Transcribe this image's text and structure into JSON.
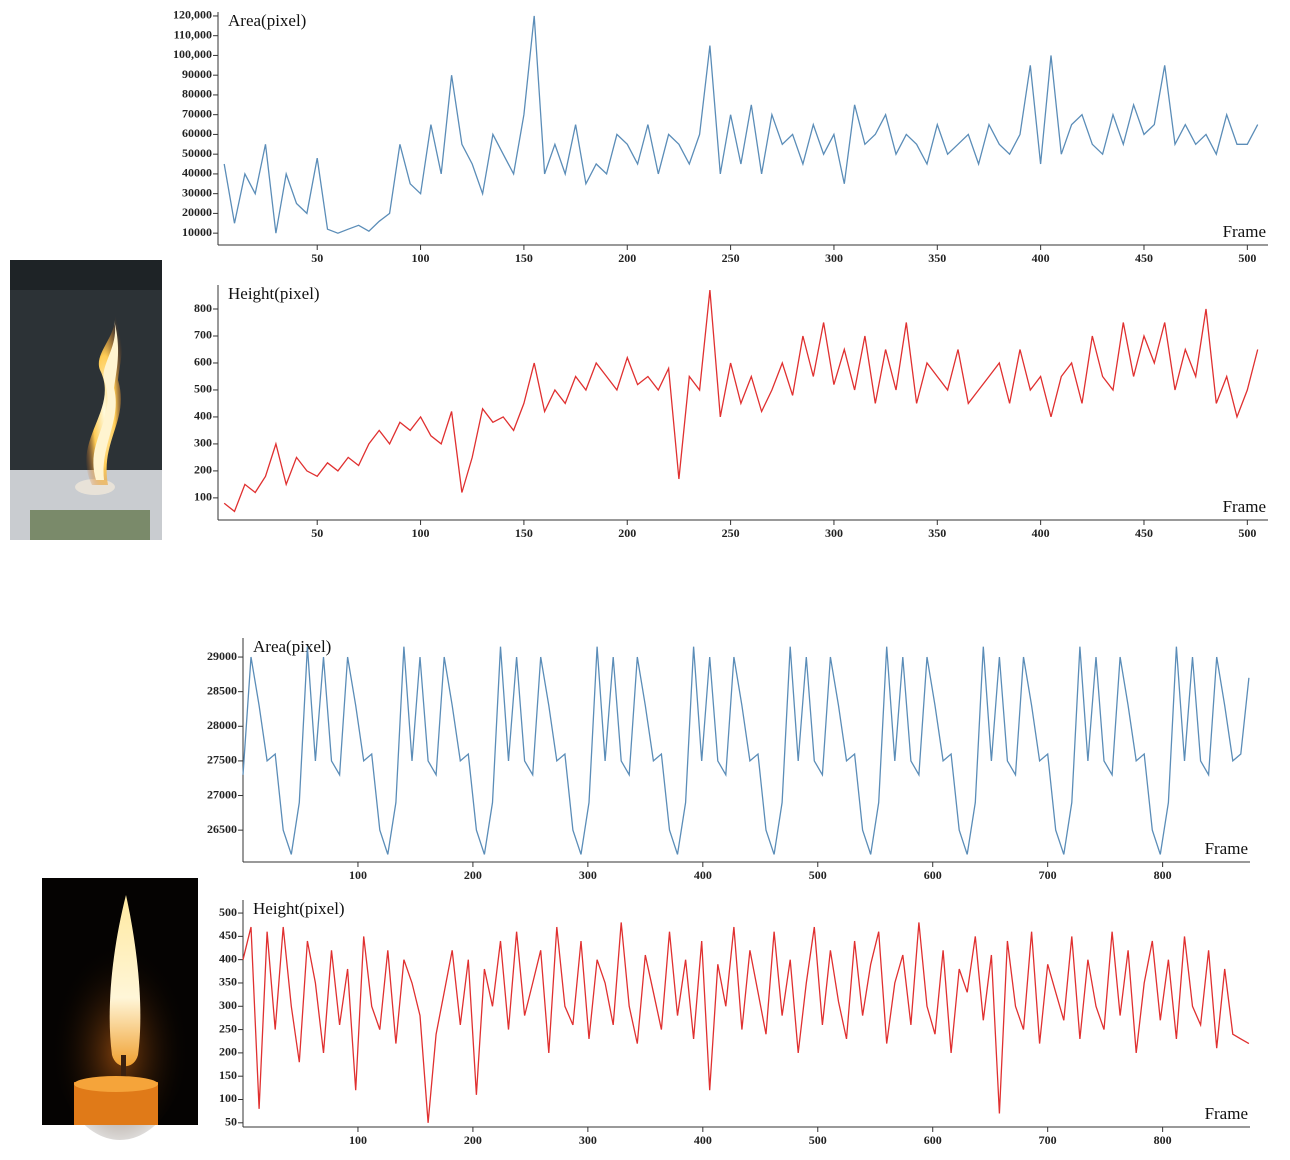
{
  "chart_data": [
    {
      "type": "line",
      "y_label": "Area(pixel)",
      "x_label": "Frame",
      "color": "#5b8db8",
      "x": [
        5,
        10,
        15,
        20,
        25,
        30,
        35,
        40,
        45,
        50,
        55,
        60,
        65,
        70,
        75,
        80,
        85,
        90,
        95,
        100,
        105,
        110,
        115,
        120,
        125,
        130,
        135,
        140,
        145,
        150,
        155,
        160,
        165,
        170,
        175,
        180,
        185,
        190,
        195,
        200,
        205,
        210,
        215,
        220,
        225,
        230,
        235,
        240,
        245,
        250,
        255,
        260,
        265,
        270,
        275,
        280,
        285,
        290,
        295,
        300,
        305,
        310,
        315,
        320,
        325,
        330,
        335,
        340,
        345,
        350,
        355,
        360,
        365,
        370,
        375,
        380,
        385,
        390,
        395,
        400,
        405,
        410,
        415,
        420,
        425,
        430,
        435,
        440,
        445,
        450,
        455,
        460,
        465,
        470,
        475,
        480,
        485,
        490,
        495,
        500,
        505
      ],
      "values": [
        45000,
        15000,
        40000,
        30000,
        55000,
        10000,
        40000,
        25000,
        20000,
        48000,
        12000,
        10000,
        12000,
        14000,
        11000,
        16000,
        20000,
        55000,
        35000,
        30000,
        65000,
        40000,
        90000,
        55000,
        45000,
        30000,
        60000,
        50000,
        40000,
        70000,
        120000,
        40000,
        55000,
        40000,
        65000,
        35000,
        45000,
        40000,
        60000,
        55000,
        45000,
        65000,
        40000,
        60000,
        55000,
        45000,
        60000,
        105000,
        40000,
        70000,
        45000,
        75000,
        40000,
        70000,
        55000,
        60000,
        45000,
        65000,
        50000,
        60000,
        35000,
        75000,
        55000,
        60000,
        70000,
        50000,
        60000,
        55000,
        45000,
        65000,
        50000,
        55000,
        60000,
        45000,
        65000,
        55000,
        50000,
        60000,
        95000,
        45000,
        100000,
        50000,
        65000,
        70000,
        55000,
        50000,
        70000,
        55000,
        75000,
        60000,
        65000,
        95000,
        55000,
        65000,
        55000,
        60000,
        50000,
        70000,
        55000,
        55000,
        65000
      ],
      "xlim": [
        2,
        510
      ],
      "ylim": [
        4000,
        122000
      ],
      "xticks": [
        50,
        100,
        150,
        200,
        250,
        300,
        350,
        400,
        450,
        500
      ],
      "yticks": [
        10000,
        20000,
        30000,
        40000,
        50000,
        60000,
        70000,
        80000,
        90000,
        {
          "value": 100000,
          "label": "100,000"
        },
        {
          "value": 110000,
          "label": "110,000"
        },
        {
          "value": 120000,
          "label": "120,000"
        }
      ]
    },
    {
      "type": "line",
      "y_label": "Height(pixel)",
      "x_label": "Frame",
      "color": "#e03030",
      "x": [
        5,
        10,
        15,
        20,
        25,
        30,
        35,
        40,
        45,
        50,
        55,
        60,
        65,
        70,
        75,
        80,
        85,
        90,
        95,
        100,
        105,
        110,
        115,
        120,
        125,
        130,
        135,
        140,
        145,
        150,
        155,
        160,
        165,
        170,
        175,
        180,
        185,
        190,
        195,
        200,
        205,
        210,
        215,
        220,
        225,
        230,
        235,
        240,
        245,
        250,
        255,
        260,
        265,
        270,
        275,
        280,
        285,
        290,
        295,
        300,
        305,
        310,
        315,
        320,
        325,
        330,
        335,
        340,
        345,
        350,
        355,
        360,
        365,
        370,
        375,
        380,
        385,
        390,
        395,
        400,
        405,
        410,
        415,
        420,
        425,
        430,
        435,
        440,
        445,
        450,
        455,
        460,
        465,
        470,
        475,
        480,
        485,
        490,
        495,
        500,
        505
      ],
      "values": [
        80,
        50,
        150,
        120,
        180,
        300,
        150,
        250,
        200,
        180,
        230,
        200,
        250,
        220,
        300,
        350,
        300,
        380,
        350,
        400,
        330,
        300,
        420,
        120,
        250,
        430,
        380,
        400,
        350,
        450,
        600,
        420,
        500,
        450,
        550,
        500,
        600,
        550,
        500,
        620,
        520,
        550,
        500,
        580,
        170,
        550,
        500,
        870,
        400,
        600,
        450,
        550,
        420,
        500,
        600,
        480,
        700,
        550,
        750,
        520,
        650,
        500,
        700,
        450,
        650,
        500,
        750,
        450,
        600,
        550,
        500,
        650,
        450,
        500,
        550,
        600,
        450,
        650,
        500,
        550,
        400,
        550,
        600,
        450,
        700,
        550,
        500,
        750,
        550,
        700,
        600,
        750,
        500,
        650,
        550,
        800,
        450,
        550,
        400,
        500,
        650
      ],
      "xlim": [
        2,
        510
      ],
      "ylim": [
        18,
        889
      ],
      "xticks": [
        50,
        100,
        150,
        200,
        250,
        300,
        350,
        400,
        450,
        500
      ],
      "yticks": [
        100,
        200,
        300,
        400,
        500,
        600,
        700,
        800
      ]
    },
    {
      "type": "line",
      "y_label": "Area(pixel)",
      "x_label": "Frame",
      "color": "#5b8db8",
      "x": [
        0,
        7,
        14,
        21,
        28,
        35,
        42,
        49,
        56,
        63,
        70,
        77,
        84,
        91,
        98,
        105,
        112,
        119,
        126,
        133,
        140,
        147,
        154,
        161,
        168,
        175,
        182,
        189,
        196,
        203,
        210,
        217,
        224,
        231,
        238,
        245,
        252,
        259,
        266,
        273,
        280,
        287,
        294,
        301,
        308,
        315,
        322,
        329,
        336,
        343,
        350,
        357,
        364,
        371,
        378,
        385,
        392,
        399,
        406,
        413,
        420,
        427,
        434,
        441,
        448,
        455,
        462,
        469,
        476,
        483,
        490,
        497,
        504,
        511,
        518,
        525,
        532,
        539,
        546,
        553,
        560,
        567,
        574,
        581,
        588,
        595,
        602,
        609,
        616,
        623,
        630,
        637,
        644,
        651,
        658,
        665,
        672,
        679,
        686,
        693,
        700,
        707,
        714,
        721,
        728,
        735,
        742,
        749,
        756,
        763,
        770,
        777,
        784,
        791,
        798,
        805,
        812,
        819,
        826,
        833,
        840,
        847,
        854,
        861,
        868,
        875
      ],
      "values": [
        27300,
        29000,
        28300,
        27500,
        27600,
        26500,
        26150,
        26900,
        29150,
        27500,
        29000,
        27500,
        27300,
        29000,
        28300,
        27500,
        27600,
        26500,
        26150,
        26900,
        29150,
        27500,
        29000,
        27500,
        27300,
        29000,
        28300,
        27500,
        27600,
        26500,
        26150,
        26900,
        29150,
        27500,
        29000,
        27500,
        27300,
        29000,
        28300,
        27500,
        27600,
        26500,
        26150,
        26900,
        29150,
        27500,
        29000,
        27500,
        27300,
        29000,
        28300,
        27500,
        27600,
        26500,
        26150,
        26900,
        29150,
        27500,
        29000,
        27500,
        27300,
        29000,
        28300,
        27500,
        27600,
        26500,
        26150,
        26900,
        29150,
        27500,
        29000,
        27500,
        27300,
        29000,
        28300,
        27500,
        27600,
        26500,
        26150,
        26900,
        29150,
        27500,
        29000,
        27500,
        27300,
        29000,
        28300,
        27500,
        27600,
        26500,
        26150,
        26900,
        29150,
        27500,
        29000,
        27500,
        27300,
        29000,
        28300,
        27500,
        27600,
        26500,
        26150,
        26900,
        29150,
        27500,
        29000,
        27500,
        27300,
        29000,
        28300,
        27500,
        27600,
        26500,
        26150,
        26900,
        29150,
        27500,
        29000,
        27500,
        27300,
        29000,
        28300,
        27500,
        27600,
        28700
      ],
      "xlim": [
        0,
        876
      ],
      "ylim": [
        26040,
        29275
      ],
      "xticks": [
        100,
        200,
        300,
        400,
        500,
        600,
        700,
        800
      ],
      "yticks": [
        26500,
        27000,
        27500,
        28000,
        28500,
        29000
      ]
    },
    {
      "type": "line",
      "y_label": "Height(pixel)",
      "x_label": "Frame",
      "color": "#e03030",
      "x": [
        0,
        7,
        14,
        21,
        28,
        35,
        42,
        49,
        56,
        63,
        70,
        77,
        84,
        91,
        98,
        105,
        112,
        119,
        126,
        133,
        140,
        147,
        154,
        161,
        168,
        175,
        182,
        189,
        196,
        203,
        210,
        217,
        224,
        231,
        238,
        245,
        252,
        259,
        266,
        273,
        280,
        287,
        294,
        301,
        308,
        315,
        322,
        329,
        336,
        343,
        350,
        357,
        364,
        371,
        378,
        385,
        392,
        399,
        406,
        413,
        420,
        427,
        434,
        441,
        448,
        455,
        462,
        469,
        476,
        483,
        490,
        497,
        504,
        511,
        518,
        525,
        532,
        539,
        546,
        553,
        560,
        567,
        574,
        581,
        588,
        595,
        602,
        609,
        616,
        623,
        630,
        637,
        644,
        651,
        658,
        665,
        672,
        679,
        686,
        693,
        700,
        707,
        714,
        721,
        728,
        735,
        742,
        749,
        756,
        763,
        770,
        777,
        784,
        791,
        798,
        805,
        812,
        819,
        826,
        833,
        840,
        847,
        854,
        861,
        868,
        875
      ],
      "values": [
        400,
        470,
        80,
        460,
        250,
        470,
        300,
        180,
        440,
        350,
        200,
        420,
        260,
        380,
        120,
        450,
        300,
        250,
        420,
        220,
        400,
        350,
        280,
        50,
        240,
        330,
        420,
        260,
        400,
        110,
        380,
        300,
        440,
        250,
        460,
        280,
        350,
        420,
        200,
        470,
        300,
        260,
        440,
        230,
        400,
        350,
        260,
        480,
        300,
        220,
        410,
        330,
        250,
        460,
        280,
        400,
        230,
        440,
        120,
        390,
        300,
        470,
        250,
        420,
        330,
        240,
        460,
        280,
        400,
        200,
        350,
        470,
        260,
        420,
        310,
        230,
        440,
        280,
        390,
        460,
        220,
        350,
        410,
        260,
        480,
        300,
        240,
        420,
        200,
        380,
        330,
        450,
        270,
        410,
        70,
        440,
        300,
        250,
        460,
        220,
        390,
        330,
        270,
        450,
        230,
        400,
        300,
        250,
        460,
        280,
        420,
        200,
        350,
        440,
        270,
        400,
        230,
        450,
        300,
        260,
        420,
        210,
        380,
        240,
        230,
        220
      ],
      "xlim": [
        0,
        876
      ],
      "ylim": [
        41,
        528
      ],
      "xticks": [
        100,
        200,
        300,
        400,
        500,
        600,
        700,
        800
      ],
      "yticks": [
        50,
        100,
        150,
        200,
        250,
        300,
        350,
        400,
        450,
        500
      ]
    }
  ]
}
